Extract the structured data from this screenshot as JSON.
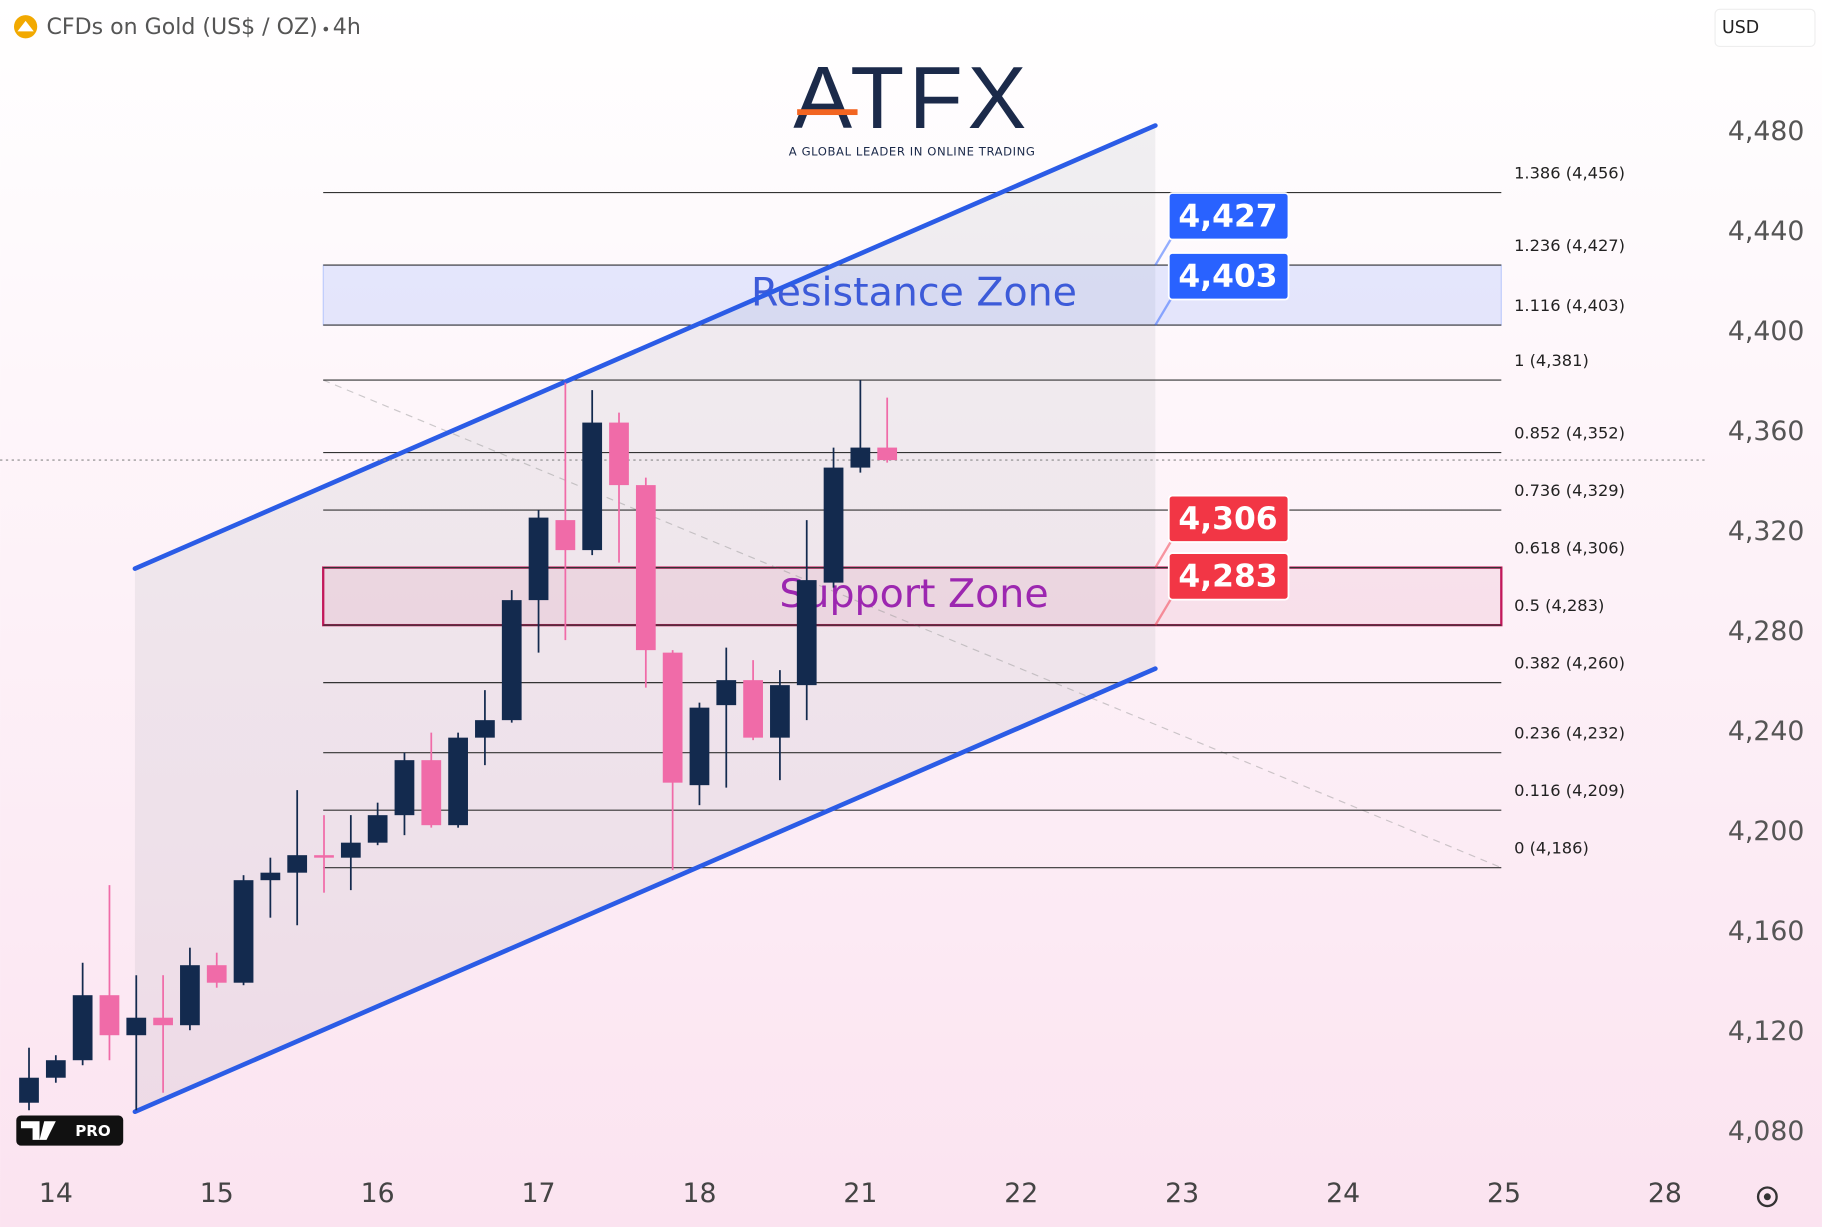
{
  "header": {
    "title": "CFDs on Gold (US$ / OZ)",
    "interval": "4h",
    "currency": "USD"
  },
  "branding": {
    "logo": "ATFX",
    "tagline": "A GLOBAL LEADER IN ONLINE TRADING",
    "badge": "PRO"
  },
  "chart_data": {
    "type": "candlestick",
    "x": [
      -1,
      0,
      1,
      2,
      3,
      4,
      5,
      6,
      7,
      8,
      9,
      10,
      11,
      12,
      13,
      14,
      15,
      16,
      17,
      18,
      19,
      20,
      21,
      22,
      23,
      24,
      25,
      26,
      27,
      28,
      29,
      30,
      31
    ],
    "open": [
      4092,
      4102,
      4109,
      4135,
      4119,
      4126,
      4123,
      4147,
      4140,
      4181,
      4184,
      4191,
      4190,
      4196,
      4207,
      4229,
      4203,
      4238,
      4245,
      4293,
      4325,
      4313,
      4364,
      4339,
      4272,
      4219,
      4251,
      4261,
      4238,
      4259,
      4300,
      4346,
      4354
    ],
    "high": [
      4114,
      4111,
      4148,
      4179,
      4143,
      4143,
      4154,
      4152,
      4183,
      4190,
      4217,
      4207,
      4207,
      4212,
      4232,
      4240,
      4240,
      4257,
      4297,
      4329,
      4380,
      4377,
      4368,
      4342,
      4273,
      4252,
      4274,
      4269,
      4265,
      4325,
      4354,
      4381,
      4374
    ],
    "low": [
      4089,
      4100,
      4107,
      4109,
      4089,
      4096,
      4121,
      4138,
      4139,
      4166,
      4163,
      4176,
      4177,
      4195,
      4199,
      4202,
      4202,
      4227,
      4244,
      4272,
      4277,
      4311,
      4308,
      4258,
      4185,
      4211,
      4218,
      4237,
      4221,
      4245,
      4298,
      4344,
      4348
    ],
    "close": [
      4102,
      4109,
      4135,
      4119,
      4126,
      4123,
      4147,
      4140,
      4181,
      4184,
      4191,
      4190,
      4196,
      4207,
      4229,
      4203,
      4238,
      4245,
      4293,
      4326,
      4313,
      4364,
      4339,
      4273,
      4220,
      4250,
      4261,
      4238,
      4259,
      4301,
      4346,
      4354,
      4349
    ],
    "up_color": "#132a4e",
    "down_color": "#f06ba8",
    "xlim": [
      -2.08,
      61.61
    ],
    "xticks": [
      {
        "value": 0,
        "label": "14"
      },
      {
        "value": 6,
        "label": "15"
      },
      {
        "value": 12,
        "label": "16"
      },
      {
        "value": 18,
        "label": "17"
      },
      {
        "value": 24,
        "label": "18"
      },
      {
        "value": 30,
        "label": "21"
      },
      {
        "value": 36,
        "label": "22"
      },
      {
        "value": 42,
        "label": "23"
      },
      {
        "value": 48,
        "label": "24"
      },
      {
        "value": 54,
        "label": "25"
      },
      {
        "value": 60,
        "label": "28"
      }
    ],
    "ylim": [
      4066,
      4533
    ],
    "yticks": [
      {
        "value": 4080,
        "label": "4,080"
      },
      {
        "value": 4120,
        "label": "4,120"
      },
      {
        "value": 4160,
        "label": "4,160"
      },
      {
        "value": 4200,
        "label": "4,200"
      },
      {
        "value": 4240,
        "label": "4,240"
      },
      {
        "value": 4280,
        "label": "4,280"
      },
      {
        "value": 4320,
        "label": "4,320"
      },
      {
        "value": 4360,
        "label": "4,360"
      },
      {
        "value": 4400,
        "label": "4,400"
      },
      {
        "value": 4440,
        "label": "4,440"
      },
      {
        "value": 4480,
        "label": "4,480"
      }
    ],
    "channel": {
      "color": "#2b5ce6",
      "x": [
        2.95,
        41.0
      ],
      "upper": [
        4305.6,
        4482.8
      ],
      "lower": [
        4088.4,
        4265.6
      ]
    },
    "fibonacci": {
      "x": [
        9.97,
        53.9
      ],
      "levels": [
        {
          "value": 4456,
          "label": "1.386 (4,456)"
        },
        {
          "value": 4427,
          "label": "1.236 (4,427)"
        },
        {
          "value": 4403,
          "label": "1.116 (4,403)"
        },
        {
          "value": 4381,
          "label": "1 (4,381)"
        },
        {
          "value": 4352,
          "label": "0.852 (4,352)"
        },
        {
          "value": 4329,
          "label": "0.736 (4,329)"
        },
        {
          "value": 4306,
          "label": "0.618 (4,306)"
        },
        {
          "value": 4283,
          "label": "0.5 (4,283)"
        },
        {
          "value": 4260,
          "label": "0.382 (4,260)"
        },
        {
          "value": 4232,
          "label": "0.236 (4,232)"
        },
        {
          "value": 4209,
          "label": "0.116 (4,209)"
        },
        {
          "value": 4186,
          "label": "0 (4,186)"
        }
      ]
    },
    "zones": [
      {
        "name": "Resistance Zone",
        "range": [
          4403,
          4427
        ],
        "color": "#2962ff"
      },
      {
        "name": "Support Zone",
        "range": [
          4283,
          4306
        ],
        "color": "#c2185b"
      }
    ],
    "price_labels": [
      {
        "value": 4427,
        "label": "4,427",
        "color": "#2962ff"
      },
      {
        "value": 4403,
        "label": "4,403",
        "color": "#2962ff"
      },
      {
        "value": 4306,
        "label": "4,306",
        "color": "#f23645"
      },
      {
        "value": 4283,
        "label": "4,283",
        "color": "#f23645"
      }
    ]
  }
}
